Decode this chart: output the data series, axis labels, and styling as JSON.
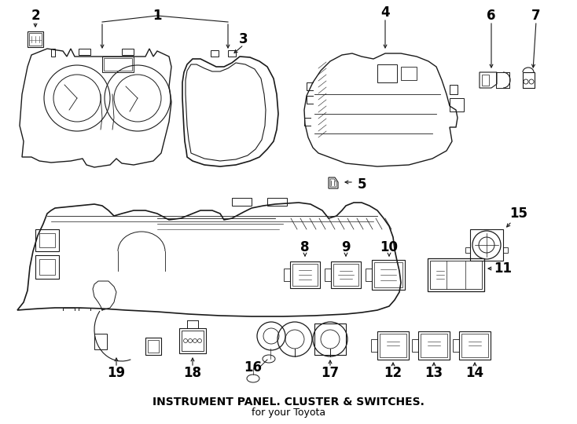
{
  "title": "INSTRUMENT PANEL. CLUSTER & SWITCHES.",
  "subtitle": "for your Toyota",
  "bg_color": "#ffffff",
  "line_color": "#1a1a1a",
  "text_color": "#000000",
  "title_fontsize": 10,
  "label_fontsize": 12,
  "fig_width": 7.34,
  "fig_height": 5.4,
  "dpi": 100
}
